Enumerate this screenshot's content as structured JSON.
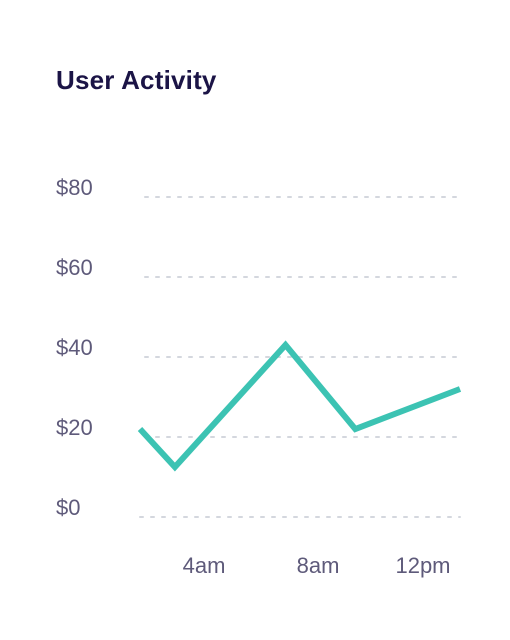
{
  "chart_data": {
    "type": "line",
    "title": "User Activity",
    "xlabel": "",
    "ylabel": "",
    "x_ticks": [
      "4am",
      "8am",
      "12pm"
    ],
    "y_ticks": [
      "$0",
      "$20",
      "$40",
      "$60",
      "$80"
    ],
    "ylim": [
      0,
      80
    ],
    "xlim": [
      1,
      12
    ],
    "grid": true,
    "line_color": "#3cc3b3",
    "series": [
      {
        "x": [
          1,
          2.2,
          6,
          8.4,
          12
        ],
        "y": [
          20,
          10.5,
          41,
          20,
          30
        ]
      }
    ]
  }
}
